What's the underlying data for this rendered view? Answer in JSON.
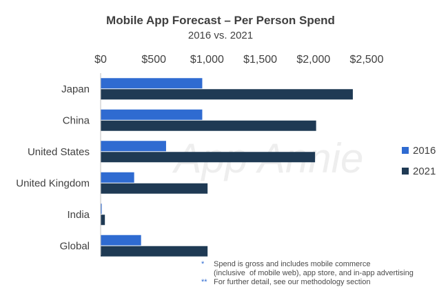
{
  "chart_data": {
    "type": "bar",
    "orientation": "horizontal",
    "title": "Mobile App Forecast – Per Person Spend",
    "subtitle": "2016 vs. 2021",
    "categories": [
      "Japan",
      "China",
      "United States",
      "United Kingdom",
      "India",
      "Global"
    ],
    "series": [
      {
        "name": "2016",
        "color": "#2f6bd1",
        "values": [
          955,
          955,
          615,
          315,
          10,
          380
        ]
      },
      {
        "name": "2021",
        "color": "#1f3a54",
        "values": [
          2370,
          2025,
          2015,
          1005,
          40,
          1005
        ]
      }
    ],
    "x_ticks": [
      "$0",
      "$500",
      "$1,000",
      "$1,500",
      "$2,000",
      "$2,500"
    ],
    "x_tick_values": [
      0,
      500,
      1000,
      1500,
      2000,
      2500
    ],
    "xlim": [
      0,
      2500
    ],
    "xlabel": "",
    "ylabel": "",
    "legend_position": "right",
    "grid": false
  },
  "watermark": "App Annie",
  "footnotes": [
    {
      "marker": "*",
      "text": "Spend is gross and includes mobile commerce"
    },
    {
      "marker": "",
      "text": "(inclusive  of mobile web), app store, and in-app advertising"
    },
    {
      "marker": "**",
      "text": "For further detail, see our methodology section"
    }
  ]
}
